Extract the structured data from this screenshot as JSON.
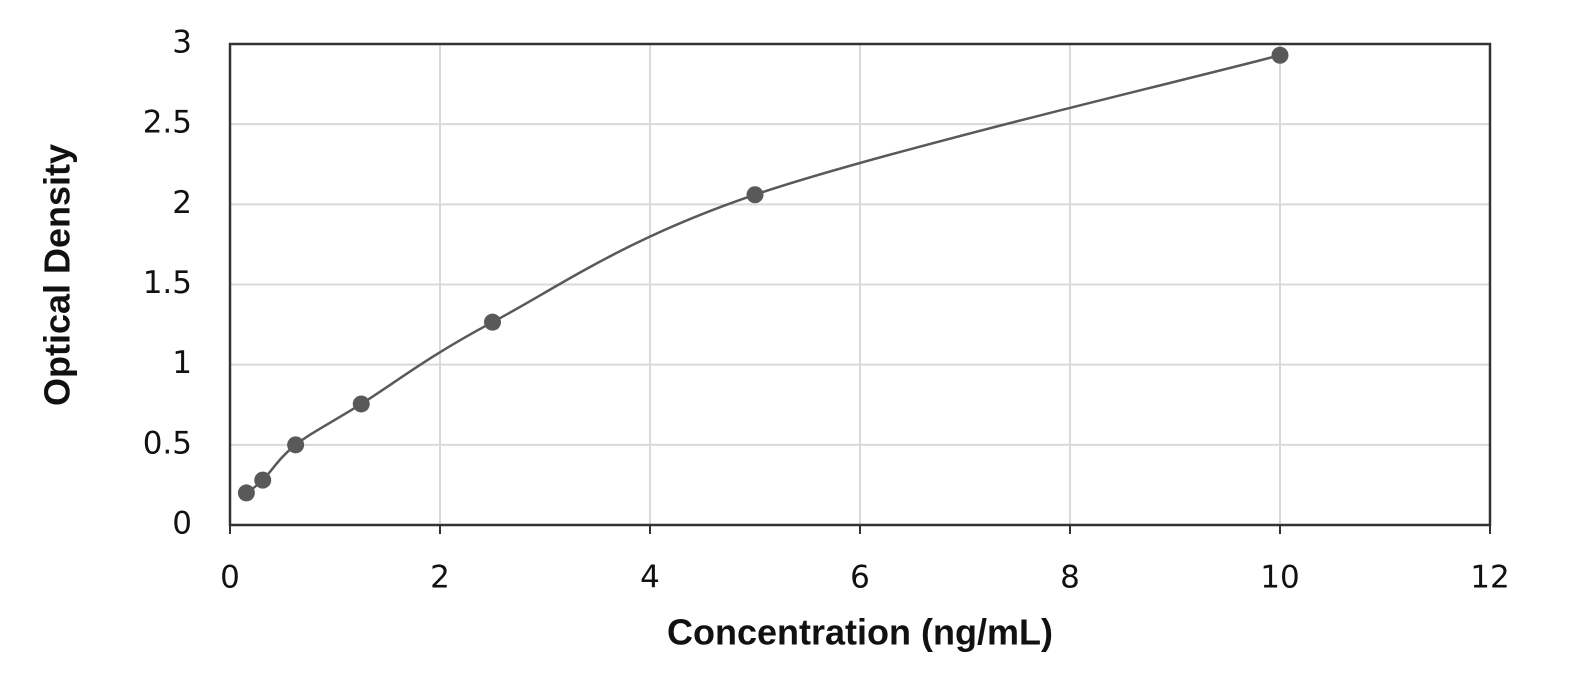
{
  "chart_data": {
    "type": "scatter",
    "x_label": "Concentration (ng/mL)",
    "y_label": "Optical Density",
    "x": [
      0.156,
      0.312,
      0.625,
      1.25,
      2.5,
      5,
      10
    ],
    "values": [
      0.2,
      0.28,
      0.5,
      0.755,
      1.265,
      2.06,
      2.93
    ],
    "color": "#595959",
    "curve": "smooth",
    "xlim": [
      0,
      12
    ],
    "xticks": [
      0,
      2,
      4,
      6,
      8,
      10,
      12
    ],
    "ylim": [
      0,
      3
    ],
    "yticks": [
      0,
      0.5,
      1,
      1.5,
      2,
      2.5,
      3
    ],
    "grid": true
  }
}
